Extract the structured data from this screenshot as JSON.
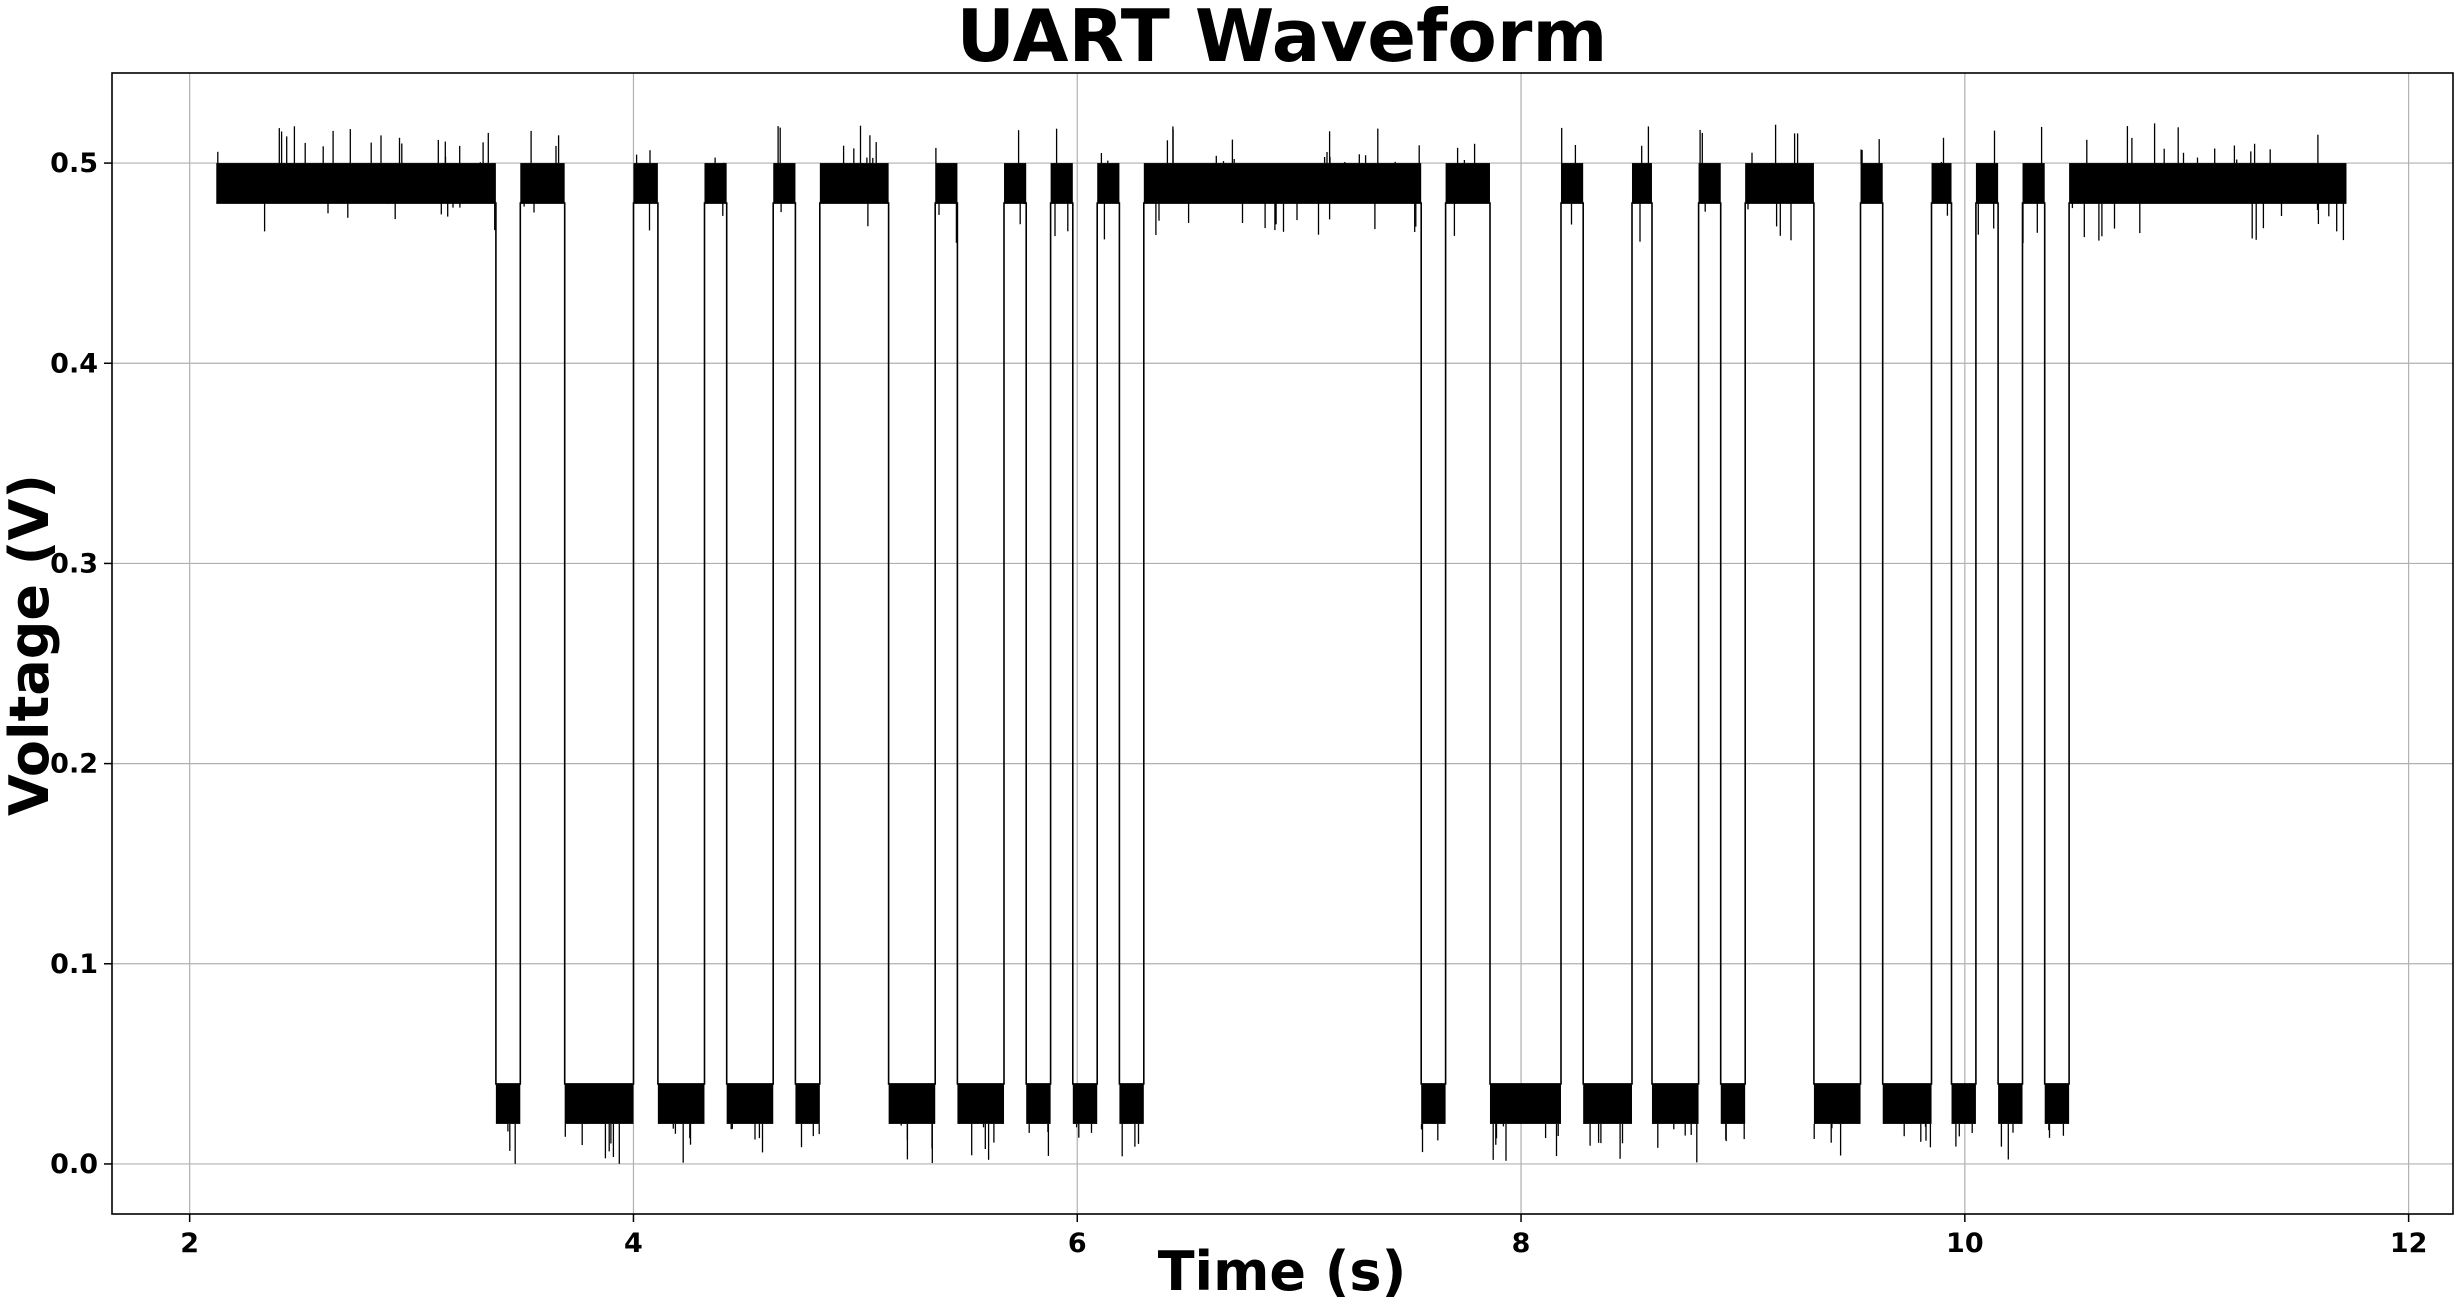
{
  "chart_data": {
    "type": "line",
    "title": "UART Waveform",
    "xlabel": "Time (s)",
    "ylabel": "Voltage (V)",
    "xlim": [
      1.65,
      12.2
    ],
    "ylim": [
      -0.025,
      0.545
    ],
    "x_ticks": [
      2,
      4,
      6,
      8,
      10,
      12
    ],
    "y_ticks": [
      0.0,
      0.1,
      0.2,
      0.3,
      0.4,
      0.5
    ],
    "x_tick_labels": [
      "2",
      "4",
      "6",
      "8",
      "10",
      "12"
    ],
    "y_tick_labels": [
      "0.0",
      "0.1",
      "0.2",
      "0.3",
      "0.4",
      "0.5"
    ],
    "grid": true,
    "line_color": "#000000",
    "high_level": 0.5,
    "low_level": 0.02,
    "noise_band_high": [
      0.48,
      0.5
    ],
    "noise_band_low": [
      0.02,
      0.04
    ],
    "noise_spike_range_high": [
      0.46,
      0.52
    ],
    "noise_spike_range_low": [
      0.0,
      0.04
    ],
    "signal_start": 2.12,
    "signal_end": 11.72,
    "low_segments": [
      [
        3.38,
        3.49
      ],
      [
        3.69,
        4.0
      ],
      [
        4.11,
        4.32
      ],
      [
        4.42,
        4.63
      ],
      [
        4.73,
        4.84
      ],
      [
        5.15,
        5.36
      ],
      [
        5.46,
        5.67
      ],
      [
        5.77,
        5.88
      ],
      [
        5.98,
        6.09
      ],
      [
        6.19,
        6.3
      ],
      [
        7.55,
        7.66
      ],
      [
        7.86,
        8.18
      ],
      [
        8.28,
        8.5
      ],
      [
        8.59,
        8.8
      ],
      [
        8.9,
        9.01
      ],
      [
        9.32,
        9.53
      ],
      [
        9.63,
        9.85
      ],
      [
        9.94,
        10.05
      ],
      [
        10.15,
        10.26
      ],
      [
        10.36,
        10.47
      ]
    ],
    "series": [
      {
        "values": "square wave between low_level and high_level using low_segments"
      }
    ]
  }
}
